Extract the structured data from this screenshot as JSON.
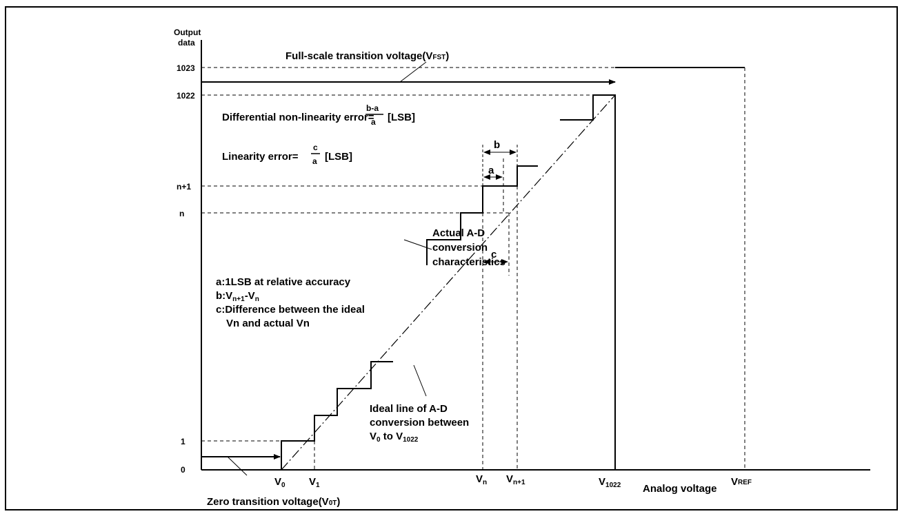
{
  "y_axis": {
    "title_line1": "Output",
    "title_line2": "data",
    "ticks": [
      "1023",
      "1022",
      "n+1",
      "n",
      "1",
      "0"
    ]
  },
  "x_axis": {
    "title": "Analog voltage",
    "tick_V0": {
      "main": "V",
      "sub": "0"
    },
    "tick_V1": {
      "main": "V",
      "sub": "1"
    },
    "tick_Vn": {
      "main": "V",
      "sub": "n"
    },
    "tick_Vn1": {
      "main": "V",
      "sub": "n+1"
    },
    "tick_V1022": {
      "main": "V",
      "sub": "1022"
    },
    "tick_VREF": {
      "main": "V",
      "sub": "REF"
    }
  },
  "labels": {
    "full_scale": {
      "main": "Full-scale transition voltage(V",
      "sub": "FST",
      "end": ")"
    },
    "zero_transition": {
      "main": "Zero transition voltage(V",
      "sub": "0T",
      "end": ")"
    },
    "dnl_prefix": "Differential non-linearity error=",
    "dnl_num": "b-a",
    "dnl_den": "a",
    "dnl_unit": "[LSB]",
    "lin_prefix": "Linearity error=",
    "lin_num": "c",
    "lin_den": "a",
    "lin_unit": "[LSB]",
    "actual": [
      "Actual A-D",
      "conversion",
      "characteristics"
    ],
    "legend_a": "a:1LSB at relative accuracy",
    "legend_b": {
      "main": "b:V",
      "sub1": "n+1",
      "mid": "-V",
      "sub2": "n"
    },
    "legend_c1": "c:Difference between the ideal",
    "legend_c2": "Vn and actual Vn",
    "ideal_1": "Ideal line of A-D",
    "ideal_2": "conversion between",
    "ideal_3": {
      "a": "V",
      "sub1": "0",
      "b": " to V",
      "sub2": "1022"
    },
    "dim_a": "a",
    "dim_b": "b",
    "dim_c": "c"
  }
}
